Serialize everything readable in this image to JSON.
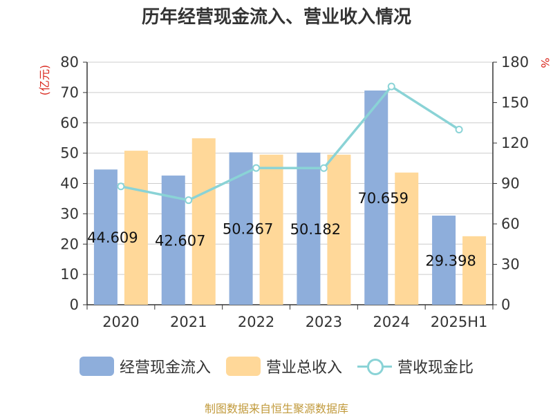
{
  "title": "历年经营现金流入、营业收入情况",
  "source": "制图数据来自恒生聚源数据库",
  "chart_data": {
    "type": "bar",
    "categories": [
      "2020",
      "2021",
      "2022",
      "2023",
      "2024",
      "2025H1"
    ],
    "series": [
      {
        "name": "经营现金流入",
        "type": "bar",
        "axis": "left",
        "color": "#8eaedb",
        "values": [
          44.609,
          42.607,
          50.267,
          50.182,
          70.659,
          29.398
        ],
        "labels": [
          "44.609",
          "42.607",
          "50.267",
          "50.182",
          "70.659",
          "29.398"
        ]
      },
      {
        "name": "营业总收入",
        "type": "bar",
        "axis": "left",
        "color": "#ffd899",
        "values": [
          50.8,
          54.9,
          49.5,
          49.5,
          43.6,
          22.6
        ]
      },
      {
        "name": "营收现金比",
        "type": "line",
        "axis": "right",
        "color": "#8ad3d6",
        "values": [
          87.8,
          77.6,
          101.5,
          101.4,
          162.0,
          130.0
        ]
      }
    ],
    "yaxis_left": {
      "label": "(亿元)",
      "min": 0,
      "max": 80,
      "ticks": [
        0,
        10,
        20,
        30,
        40,
        50,
        60,
        70,
        80
      ]
    },
    "yaxis_right": {
      "label": "%",
      "min": 0,
      "max": 180,
      "ticks": [
        0,
        30,
        60,
        90,
        120,
        150,
        180
      ]
    },
    "grid": true,
    "legend_position": "bottom"
  }
}
